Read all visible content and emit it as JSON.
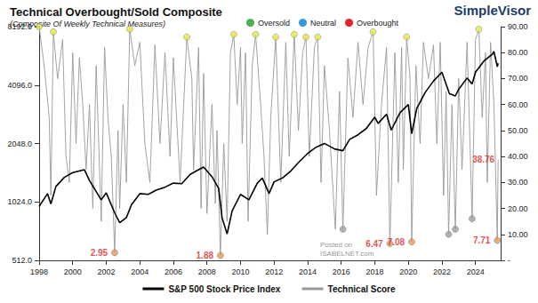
{
  "chart_data": {
    "type": "line",
    "title": "Technical Overbought/Sold Composite",
    "subtitle": "(Composite Of Weekly Technical Measures)",
    "logo": "SimpleVisor",
    "watermark": [
      "Posted on",
      "ISABELNET.com"
    ],
    "log": "y",
    "grid": false,
    "legend": "bottom",
    "xlim": [
      1998,
      2025.5
    ],
    "xticks": [
      1998,
      2000,
      2002,
      2004,
      2006,
      2008,
      2010,
      2012,
      2014,
      2016,
      2018,
      2020,
      2022,
      2024
    ],
    "ylim": [
      512,
      8192
    ],
    "yticks": [
      {
        "value": 512,
        "label": "512.0"
      },
      {
        "value": 1024,
        "label": "1024.0"
      },
      {
        "value": 2048,
        "label": "2048.0"
      },
      {
        "value": 4096,
        "label": "4096.0"
      },
      {
        "value": 8192,
        "label": "8192.0"
      }
    ],
    "y2lim": [
      0,
      90
    ],
    "y2ticks": [
      {
        "value": 0,
        "label": "-"
      },
      {
        "value": 10,
        "label": "10.00"
      },
      {
        "value": 20,
        "label": "20.00"
      },
      {
        "value": 30,
        "label": "30.00"
      },
      {
        "value": 40,
        "label": "40.00"
      },
      {
        "value": 50,
        "label": "50.00"
      },
      {
        "value": 60,
        "label": "60.00"
      },
      {
        "value": 70,
        "label": "70.00"
      },
      {
        "value": 80,
        "label": "80.00"
      },
      {
        "value": 90,
        "label": "90.00"
      }
    ],
    "series": [
      {
        "name": "S&P 500 Stock Price Index",
        "color": "#000000",
        "axis": "y",
        "x": [
          1998.0,
          1998.5,
          1998.7,
          1999.0,
          1999.5,
          2000.0,
          2000.7,
          2001.0,
          2001.7,
          2002.0,
          2002.5,
          2002.8,
          2003.2,
          2003.5,
          2004.0,
          2004.5,
          2005.0,
          2005.5,
          2006.0,
          2006.5,
          2007.0,
          2007.5,
          2007.8,
          2008.3,
          2008.7,
          2008.9,
          2009.2,
          2009.5,
          2010.0,
          2010.5,
          2011.0,
          2011.3,
          2011.7,
          2012.0,
          2012.5,
          2013.0,
          2013.5,
          2014.0,
          2014.5,
          2015.0,
          2015.6,
          2016.1,
          2016.5,
          2017.0,
          2017.5,
          2018.0,
          2018.2,
          2018.7,
          2018.98,
          2019.5,
          2020.0,
          2020.2,
          2020.5,
          2021.0,
          2021.5,
          2022.0,
          2022.45,
          2022.8,
          2023.0,
          2023.5,
          2023.8,
          2024.0,
          2024.5,
          2025.0,
          2025.1,
          2025.3,
          2025.35
        ],
        "values": [
          970,
          1130,
          1000,
          1230,
          1370,
          1450,
          1500,
          1320,
          1050,
          1140,
          900,
          800,
          850,
          990,
          1130,
          1120,
          1180,
          1220,
          1280,
          1270,
          1420,
          1500,
          1550,
          1380,
          1200,
          850,
          700,
          920,
          1120,
          1050,
          1280,
          1360,
          1130,
          1300,
          1360,
          1480,
          1650,
          1820,
          1960,
          2050,
          1920,
          1880,
          2150,
          2270,
          2450,
          2800,
          2600,
          2900,
          2400,
          2950,
          3250,
          2300,
          3100,
          3750,
          4300,
          4770,
          3700,
          3600,
          3900,
          4450,
          4150,
          4770,
          5450,
          5900,
          6100,
          5100,
          5300
        ]
      },
      {
        "name": "Technical Score",
        "color": "#999999",
        "axis": "y2",
        "ranges": [
          {
            "label": "Overbought",
            "min": 70,
            "color": "#e4262b"
          },
          {
            "label": "Neutral",
            "min": 40,
            "max": 70,
            "color": "#3b9bd8"
          },
          {
            "label": "Oversold",
            "max": 40,
            "color": "#4caf50"
          }
        ],
        "x": [
          1998.0,
          1998.3,
          1998.6,
          1998.7,
          1998.85,
          1999.1,
          1999.4,
          1999.6,
          1999.8,
          2000.0,
          2000.2,
          2000.4,
          2000.6,
          2000.8,
          2001.0,
          2001.2,
          2001.4,
          2001.7,
          2001.9,
          2002.1,
          2002.3,
          2002.5,
          2002.7,
          2002.8,
          2003.0,
          2003.2,
          2003.4,
          2003.7,
          2004.0,
          2004.3,
          2004.6,
          2004.9,
          2005.2,
          2005.5,
          2005.8,
          2006.0,
          2006.4,
          2006.8,
          2007.1,
          2007.2,
          2007.5,
          2007.65,
          2007.8,
          2008.0,
          2008.3,
          2008.5,
          2008.6,
          2008.8,
          2009.0,
          2009.2,
          2009.4,
          2009.6,
          2009.8,
          2010.0,
          2010.1,
          2010.3,
          2010.45,
          2010.7,
          2010.9,
          2011.2,
          2011.4,
          2011.6,
          2011.8,
          2012.1,
          2012.4,
          2012.7,
          2012.9,
          2013.2,
          2013.45,
          2013.7,
          2013.9,
          2014.1,
          2014.4,
          2014.6,
          2014.8,
          2015.0,
          2015.3,
          2015.65,
          2015.9,
          2016.1,
          2016.4,
          2016.7,
          2017.0,
          2017.3,
          2017.6,
          2017.9,
          2018.1,
          2018.4,
          2018.7,
          2018.9,
          2019.2,
          2019.4,
          2019.6,
          2019.7,
          2019.9,
          2020.1,
          2020.2,
          2020.45,
          2020.7,
          2020.9,
          2021.2,
          2021.5,
          2021.7,
          2021.9,
          2022.1,
          2022.25,
          2022.4,
          2022.6,
          2022.8,
          2023.0,
          2023.2,
          2023.5,
          2023.8,
          2024.0,
          2024.2,
          2024.4,
          2024.6,
          2024.7,
          2024.9,
          2025.1,
          2025.3,
          2025.35
        ],
        "values": [
          90,
          75,
          55,
          25,
          88,
          70,
          85,
          40,
          30,
          80,
          45,
          78,
          60,
          35,
          60,
          20,
          75,
          15,
          82,
          55,
          40,
          2.95,
          50,
          20,
          60,
          30,
          89,
          75,
          84,
          45,
          30,
          83,
          45,
          80,
          40,
          78,
          30,
          86,
          70,
          35,
          82,
          20,
          72,
          18,
          60,
          22,
          50,
          1.88,
          45,
          15,
          80,
          87,
          60,
          82,
          45,
          80,
          15,
          75,
          87,
          60,
          40,
          10,
          55,
          86,
          30,
          84,
          40,
          87,
          50,
          80,
          86,
          40,
          82,
          86,
          30,
          75,
          50,
          12,
          65,
          12,
          78,
          55,
          84,
          60,
          82,
          88,
          25,
          60,
          82,
          6.47,
          80,
          30,
          82,
          35,
          86,
          70,
          7.08,
          75,
          45,
          84,
          70,
          83,
          45,
          84,
          25,
          65,
          10,
          60,
          12,
          70,
          35,
          84,
          16,
          85,
          89,
          55,
          80,
          30,
          84,
          60,
          7.71,
          38.76
        ]
      }
    ],
    "markers": [
      {
        "color": "#e8e84a",
        "marker": "circle",
        "data_labels": false,
        "x": [
          1998.0,
          1998.85,
          2003.4,
          2006.8,
          2009.6,
          2010.9,
          2012.1,
          2013.2,
          2013.9,
          2014.6,
          2017.9,
          2019.9,
          2024.2
        ],
        "values": [
          90,
          88,
          89,
          86,
          87,
          87,
          86,
          87,
          86,
          86,
          88,
          86,
          89
        ]
      },
      {
        "color": "#a0a0a0",
        "marker": "circle",
        "data_labels": false,
        "x": [
          2016.1,
          2022.4,
          2022.8,
          2023.8
        ],
        "values": [
          12,
          10,
          12,
          16
        ]
      },
      {
        "color": "#e69a5c",
        "marker": "circle",
        "data_labels": true,
        "x": [
          2002.5,
          2008.8,
          2018.9,
          2020.2,
          2025.3
        ],
        "values": [
          2.95,
          1.88,
          6.47,
          7.08,
          7.71
        ]
      },
      {
        "color": "#d62728",
        "marker": "none",
        "data_labels": true,
        "x": [
          2025.35
        ],
        "values": [
          38.76
        ]
      }
    ]
  }
}
